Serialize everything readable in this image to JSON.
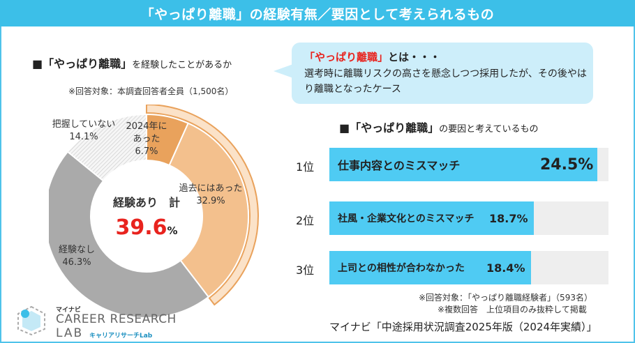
{
  "header": {
    "title": "「やっぱり離職」の経験有無／要因として考えられるもの"
  },
  "left": {
    "title_main": "■「やっぱり離職」",
    "title_sub": "を経験したことがあるか",
    "note": "※回答対象：本調査回答者全員（1,500名）",
    "center_label": "経験あり　計",
    "center_value": "39.6",
    "center_unit": "%"
  },
  "callout": {
    "term": "「やっぱり離職」",
    "term_suffix": "とは・・・",
    "definition": "選考時に離職リスクの高さを懸念しつつ採用したが、その後やはり離職となったケース"
  },
  "right": {
    "title_main": "■「やっぱり離職」",
    "title_sub": "の要因と考えているもの",
    "note1": "※回答対象：「やっぱり離職経験者」（593名）",
    "note2": "※複数回答　上位項目のみ抜粋して掲載",
    "source": "マイナビ「中途採用状況調査2025年版（2024年実績）」"
  },
  "logo": {
    "brand": "マイナビ",
    "line1": "CAREER RESEARCH",
    "line2": "LAB",
    "sub": "キャリアリサーチLab"
  },
  "chart_data": [
    {
      "type": "pie",
      "title": "「やっぱり離職」を経験したことがあるか",
      "slices": [
        {
          "name": "2024年にあった",
          "name_line1": "2024年に",
          "name_line2": "あった",
          "value": 6.7,
          "label": "6.7%",
          "color": "#e9a25c"
        },
        {
          "name": "過去にはあった",
          "value": 32.9,
          "label": "32.9%",
          "color": "#f3c08d"
        },
        {
          "name": "経験なし",
          "value": 46.3,
          "label": "46.3%",
          "color": "#aaaaaa"
        },
        {
          "name": "把握していない",
          "value": 14.1,
          "label": "14.1%",
          "color": "#eeeeee"
        }
      ]
    },
    {
      "type": "bar",
      "title": "「やっぱり離職」の要因と考えているもの",
      "xlim": [
        0,
        25
      ],
      "bars": [
        {
          "rank": "1位",
          "category": "仕事内容とのミスマッチ",
          "value": 24.5,
          "label": "24.5%"
        },
        {
          "rank": "2位",
          "category": "社風・企業文化とのミスマッチ",
          "value": 18.7,
          "label": "18.7%"
        },
        {
          "rank": "3位",
          "category": "上司との相性が合わなかった",
          "value": 18.4,
          "label": "18.4%"
        }
      ]
    }
  ]
}
